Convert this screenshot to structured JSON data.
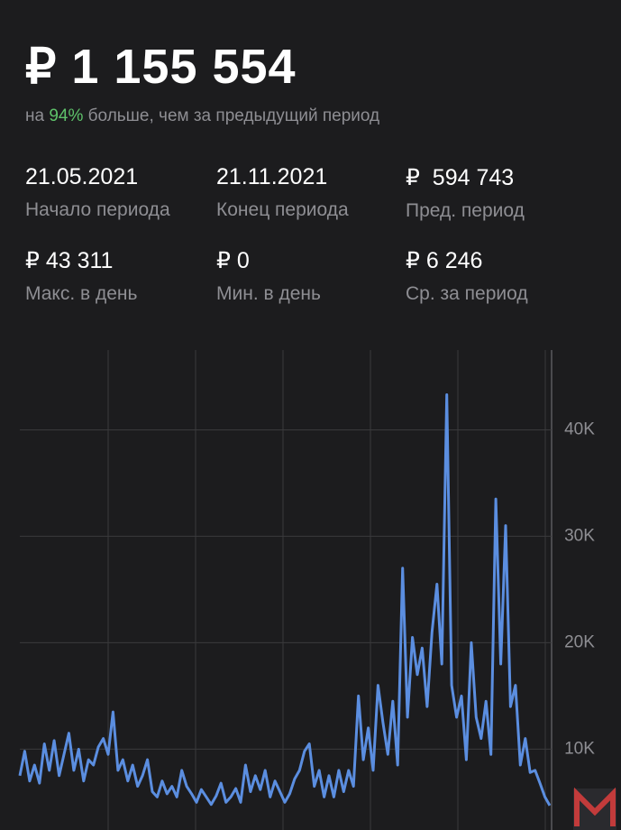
{
  "header": {
    "total": "₽ 1 155 554",
    "compare_prefix": "на",
    "compare_highlight": "94%",
    "compare_suffix": "больше, чем за предыдущий период"
  },
  "stats": [
    {
      "value": "21.05.2021",
      "label": "Начало периода"
    },
    {
      "value": "21.11.2021",
      "label": "Конец периода"
    },
    {
      "value": "₽  594 743",
      "label": "Пред. период"
    },
    {
      "value": "₽ 43 311",
      "label": "Макс. в день"
    },
    {
      "value": "₽ 0",
      "label": "Мин. в день"
    },
    {
      "value": "₽ 6 246",
      "label": "Ср. за период"
    }
  ],
  "chart_data": {
    "type": "line",
    "color": "#5b8ee0",
    "grid": true,
    "values": [
      7500,
      9800,
      7000,
      8500,
      6800,
      10500,
      8000,
      10800,
      7500,
      9500,
      11500,
      8000,
      10000,
      7000,
      9000,
      8500,
      10200,
      11000,
      9500,
      13500,
      8000,
      9000,
      7000,
      8500,
      6500,
      7500,
      9000,
      6000,
      5500,
      7000,
      5800,
      6500,
      5500,
      8000,
      6500,
      5800,
      5000,
      6200,
      5500,
      4800,
      5600,
      6800,
      5000,
      5500,
      6300,
      5000,
      8500,
      6000,
      7500,
      6200,
      8000,
      5500,
      7000,
      6000,
      5000,
      5800,
      7200,
      8000,
      9800,
      10500,
      6500,
      8000,
      5500,
      7500,
      5500,
      8000,
      6000,
      8000,
      6500,
      15000,
      9000,
      12000,
      8000,
      16000,
      12500,
      9500,
      14500,
      8500,
      27000,
      13000,
      20500,
      17000,
      19500,
      14000,
      21000,
      25500,
      18000,
      43300,
      16000,
      13000,
      15000,
      9000,
      20000,
      13000,
      11000,
      14500,
      9500,
      33500,
      18000,
      31000,
      14000,
      16000,
      8500,
      11000,
      7800,
      8000,
      6800,
      5500,
      4700
    ],
    "ylim": [
      2400,
      47500
    ],
    "yticks": [
      {
        "value": 10000,
        "label": "10K"
      },
      {
        "value": 20000,
        "label": "20K"
      },
      {
        "value": 30000,
        "label": "30K"
      },
      {
        "value": 40000,
        "label": "40K"
      }
    ]
  }
}
